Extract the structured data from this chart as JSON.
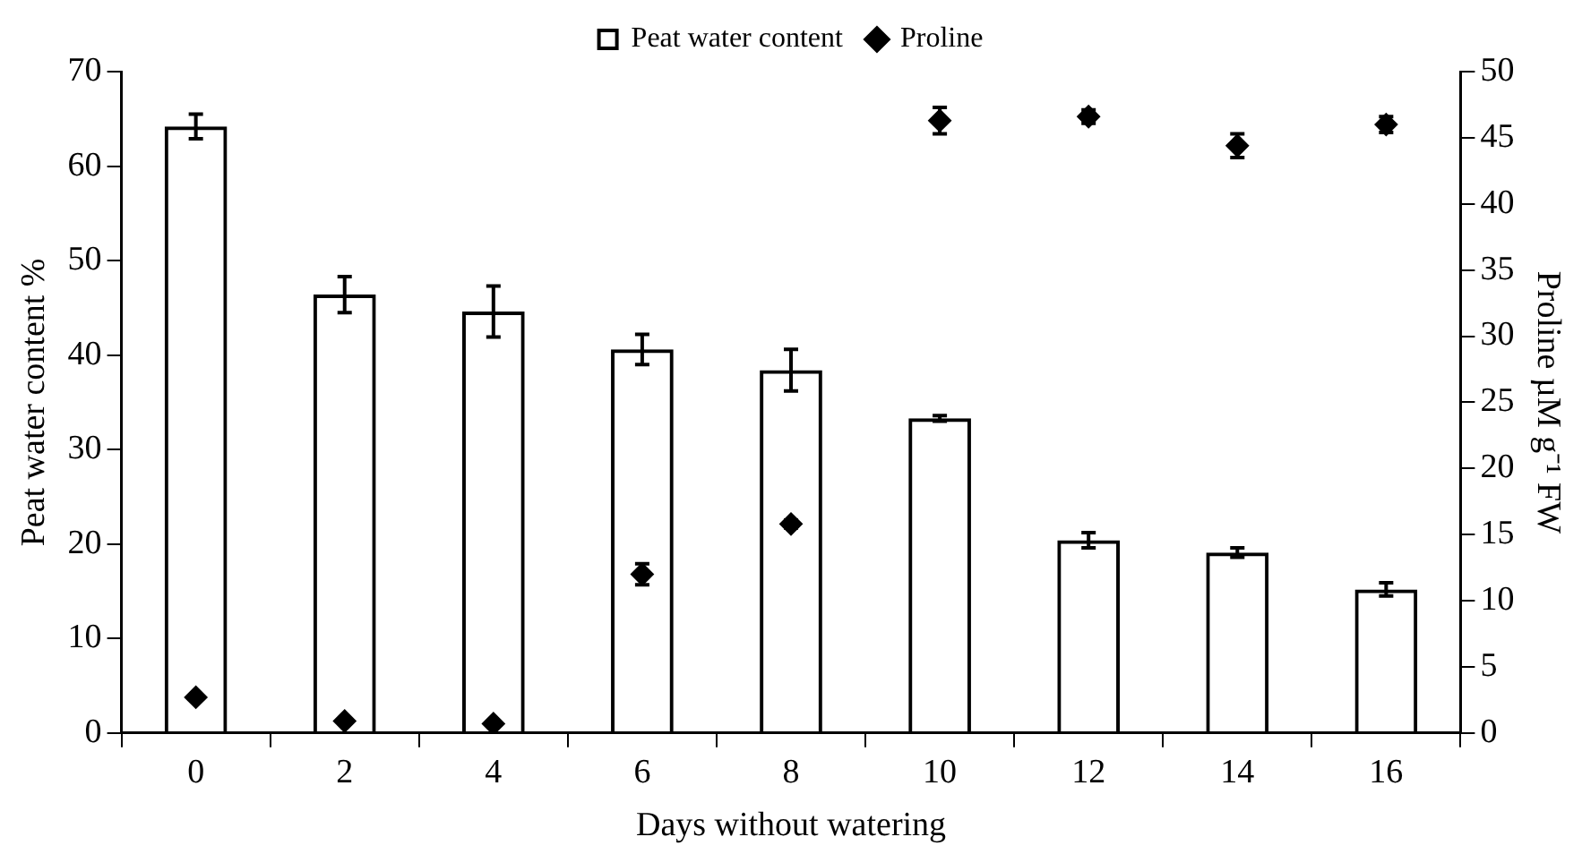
{
  "chart_data": {
    "type": "bar",
    "xlabel": "Days without watering",
    "ylabel": "Peat water content %",
    "y2label": "Proline µM g⁻¹ FW",
    "categories": [
      "0",
      "2",
      "4",
      "6",
      "8",
      "10",
      "12",
      "14",
      "16"
    ],
    "series": [
      {
        "name": "Peat water content",
        "color": "#000000",
        "values": [
          64.2,
          46.4,
          44.6,
          40.6,
          38.4,
          33.3,
          20.4,
          19.1,
          15.2
        ],
        "errors": [
          1.3,
          1.9,
          2.7,
          1.6,
          2.2,
          0.3,
          0.8,
          0.5,
          0.7
        ]
      },
      {
        "name": "Proline",
        "type": "scatter",
        "axis": "y2",
        "color": "#000000",
        "marker": "diamond",
        "values": [
          2.7,
          0.9,
          0.7,
          12.0,
          15.8,
          46.3,
          46.6,
          44.4,
          46.0
        ],
        "errors": [
          null,
          null,
          null,
          0.8,
          0.3,
          1.0,
          0.5,
          0.9,
          0.6
        ]
      }
    ],
    "ylim": [
      0,
      70
    ],
    "yticks": [
      0,
      10,
      20,
      30,
      40,
      50,
      60,
      70
    ],
    "y2lim": [
      0,
      50
    ],
    "y2ticks": [
      0,
      5,
      10,
      15,
      20,
      25,
      30,
      35,
      40,
      45,
      50
    ],
    "grid": false,
    "legend": "top"
  }
}
